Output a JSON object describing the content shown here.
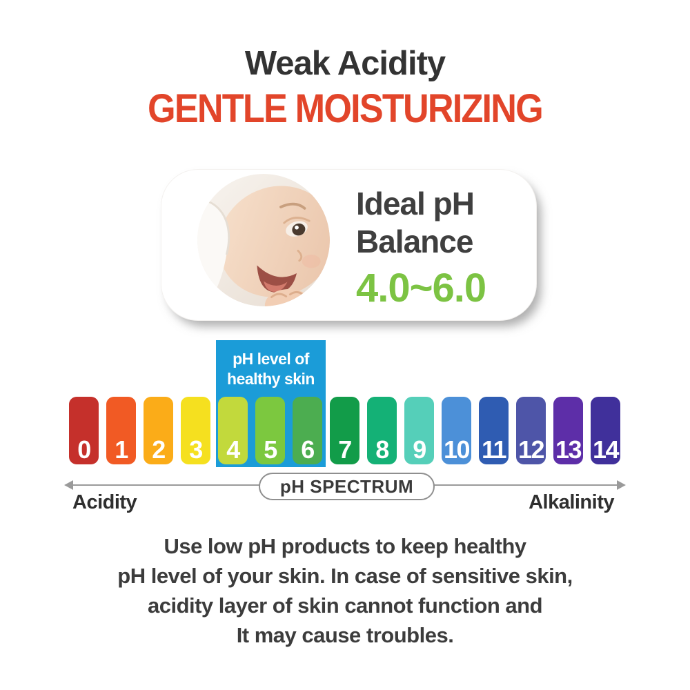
{
  "header": {
    "title": "Weak Acidity",
    "subtitle": "GENTLE MOISTURIZING"
  },
  "ideal_card": {
    "line1": "Ideal pH",
    "line2": "Balance",
    "value": "4.0~6.0"
  },
  "highlight": {
    "line1": "pH level of",
    "line2": "healthy skin",
    "range": [
      4,
      6
    ]
  },
  "spectrum": {
    "axis_label": "pH SPECTRUM",
    "left_label": "Acidity",
    "right_label": "Alkalinity",
    "levels": [
      {
        "label": "0",
        "color": "#C5302B"
      },
      {
        "label": "1",
        "color": "#F15A24"
      },
      {
        "label": "2",
        "color": "#FBAC18"
      },
      {
        "label": "3",
        "color": "#F5E01F"
      },
      {
        "label": "4",
        "color": "#C2D93C"
      },
      {
        "label": "5",
        "color": "#7CC83F"
      },
      {
        "label": "6",
        "color": "#4CAD50"
      },
      {
        "label": "7",
        "color": "#129C49"
      },
      {
        "label": "8",
        "color": "#14B176"
      },
      {
        "label": "9",
        "color": "#55CFB9"
      },
      {
        "label": "10",
        "color": "#4C90D8"
      },
      {
        "label": "11",
        "color": "#2F5CB2"
      },
      {
        "label": "12",
        "color": "#4E55A8"
      },
      {
        "label": "13",
        "color": "#5D2EA8"
      },
      {
        "label": "14",
        "color": "#40309B"
      }
    ]
  },
  "description": {
    "lines": [
      "Use low pH products to keep healthy",
      "pH level of your skin. In case of sensitive skin,",
      "acidity layer of skin cannot function and",
      "It may cause troubles."
    ]
  },
  "colors": {
    "subtitle_red": "#E2452A",
    "value_green": "#7CC343",
    "highlight_blue": "#1B9CD8",
    "title_dark": "#333333"
  }
}
